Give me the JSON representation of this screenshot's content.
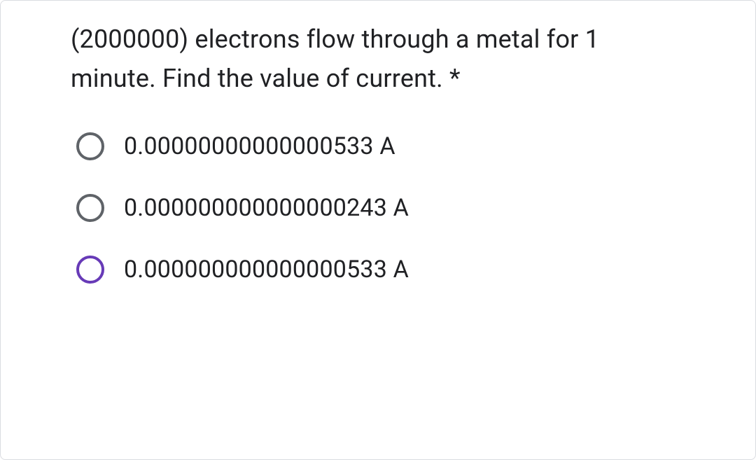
{
  "question": {
    "text": "(2000000) electrons flow through a metal for 1 minute. Find the value of current.",
    "required_marker": "*",
    "text_color": "#202124",
    "fontsize": 36
  },
  "options": [
    {
      "label": "0.00000000000000533 A",
      "state": "unselected",
      "border_color": "#5f6368"
    },
    {
      "label": "0.000000000000000243 A",
      "state": "unselected",
      "border_color": "#5f6368"
    },
    {
      "label": "0.000000000000000533 A",
      "state": "focused",
      "border_color": "#673ab7"
    }
  ],
  "styling": {
    "background_color": "#ffffff",
    "card_border_color": "#dadce0",
    "radio_unselected_color": "#5f6368",
    "radio_focused_color": "#673ab7",
    "option_fontsize": 34,
    "radio_size": 40,
    "radio_border_width": 4
  }
}
